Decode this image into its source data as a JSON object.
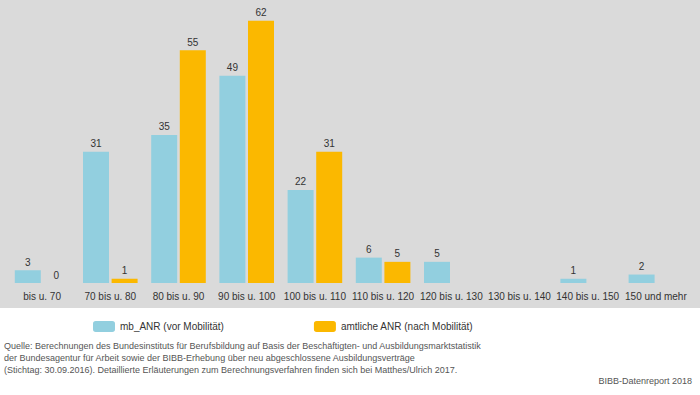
{
  "chart_data": {
    "type": "bar",
    "categories": [
      "bis u. 70",
      "70 bis u. 80",
      "80 bis u. 90",
      "90 bis u. 100",
      "100 bis u. 110",
      "110 bis u. 120",
      "120 bis u. 130",
      "130 bis u. 140",
      "140 bis u. 150",
      "150 und mehr"
    ],
    "series": [
      {
        "name": "mb_ANR (vor Mobilität)",
        "color": "#92cfdf",
        "values": [
          3,
          31,
          35,
          49,
          22,
          6,
          5,
          null,
          1,
          2
        ]
      },
      {
        "name": "amtliche ANR (nach Mobilität)",
        "color": "#fbb800",
        "values": [
          0,
          1,
          55,
          62,
          31,
          5,
          null,
          null,
          null,
          null
        ]
      }
    ],
    "ylim": [
      0,
      65
    ],
    "grid": false,
    "legend": "bottom",
    "data_labels": true,
    "tick_labels": "x",
    "source": [
      "Quelle: Berechnungen des Bundesinstituts für Berufsbildung auf Basis der Beschäftigten- und Ausbildungsmarktstatistik",
      "der Bundesagentur für Arbeit sowie der BIBB-Erhebung über neu abgeschlossene Ausbildungsverträge",
      "(Stichtag: 30.09.2016). Detaillierte Erläuterungen zum Berechnungsverfahren finden sich bei Matthes/Ulrich 2017."
    ],
    "credit": "BIBB-Datenreport 2018"
  }
}
